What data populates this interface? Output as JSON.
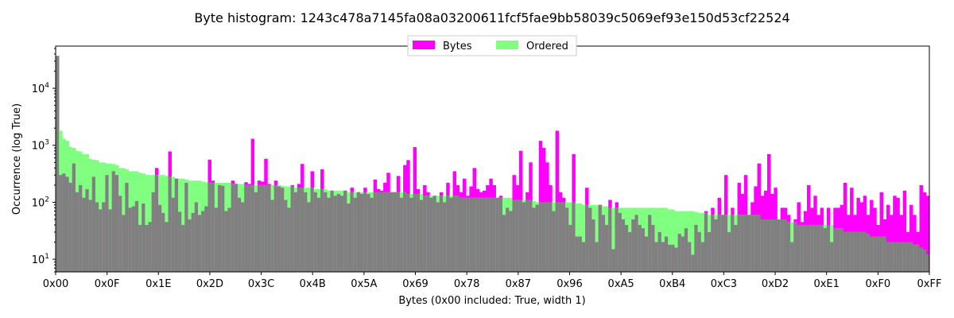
{
  "chart_data": {
    "type": "bar",
    "title": "Byte histogram: 1243c478a7145fa08a03200611fcf5fae9bb58039c5069ef93e150d53cf22524",
    "xlabel": "Bytes (0x00 included: True, width 1)",
    "ylabel": "Occurrence (log True)",
    "y_scale": "log",
    "ylim": [
      6,
      55000
    ],
    "xlim": [
      0,
      255
    ],
    "grid": false,
    "legend_position": "top-center",
    "x_tick_labels": [
      "0x00",
      "0x0F",
      "0x1E",
      "0x2D",
      "0x3C",
      "0x4B",
      "0x5A",
      "0x69",
      "0x78",
      "0x87",
      "0x96",
      "0xA5",
      "0xB4",
      "0xC3",
      "0xD2",
      "0xE1",
      "0xF0",
      "0xFF"
    ],
    "x_tick_values": [
      0,
      15,
      30,
      45,
      60,
      75,
      90,
      105,
      120,
      135,
      150,
      165,
      180,
      195,
      210,
      225,
      240,
      255
    ],
    "y_tick_labels": [
      "10^1",
      "10^2",
      "10^3",
      "10^4"
    ],
    "y_tick_values": [
      10,
      100,
      1000,
      10000
    ],
    "series": [
      {
        "name": "Bytes",
        "color": "#ff00ff",
        "values": [
          37000,
          300,
          320,
          280,
          220,
          480,
          150,
          200,
          120,
          170,
          110,
          280,
          100,
          75,
          100,
          300,
          75,
          350,
          300,
          130,
          60,
          220,
          80,
          85,
          105,
          40,
          95,
          40,
          45,
          150,
          400,
          90,
          65,
          45,
          780,
          120,
          260,
          68,
          40,
          220,
          50,
          65,
          100,
          60,
          70,
          85,
          560,
          240,
          80,
          200,
          195,
          70,
          80,
          240,
          210,
          120,
          100,
          225,
          210,
          1300,
          150,
          240,
          230,
          580,
          210,
          110,
          240,
          190,
          180,
          110,
          80,
          200,
          150,
          210,
          470,
          150,
          100,
          350,
          150,
          120,
          380,
          150,
          120,
          160,
          130,
          140,
          130,
          160,
          95,
          180,
          120,
          150,
          140,
          180,
          140,
          120,
          250,
          170,
          160,
          220,
          330,
          150,
          150,
          290,
          120,
          450,
          550,
          120,
          930,
          170,
          110,
          200,
          150,
          120,
          130,
          100,
          150,
          100,
          220,
          120,
          350,
          200,
          150,
          260,
          130,
          190,
          400,
          170,
          150,
          160,
          200,
          260,
          200,
          120,
          130,
          60,
          80,
          70,
          300,
          200,
          800,
          100,
          150,
          500,
          80,
          90,
          1200,
          900,
          500,
          200,
          70,
          1800,
          150,
          120,
          80,
          40,
          700,
          25,
          25,
          20,
          180,
          80,
          50,
          20,
          90,
          60,
          40,
          110,
          15,
          100,
          65,
          50,
          40,
          30,
          50,
          60,
          40,
          35,
          25,
          60,
          40,
          20,
          30,
          20,
          25,
          18,
          18,
          16,
          28,
          25,
          35,
          20,
          12,
          40,
          30,
          20,
          70,
          30,
          80,
          50,
          120,
          60,
          300,
          30,
          80,
          40,
          220,
          140,
          300,
          60,
          100,
          190,
          480,
          130,
          160,
          700,
          140,
          180,
          50,
          80,
          80,
          60,
          20,
          50,
          100,
          45,
          70,
          200,
          80,
          130,
          60,
          80,
          35,
          80,
          20,
          80,
          80,
          90,
          220,
          60,
          180,
          60,
          120,
          100,
          130,
          60,
          110,
          80,
          40,
          150,
          50,
          90,
          60,
          130,
          120,
          60,
          160,
          30,
          90,
          60,
          30,
          200,
          150,
          130
        ],
        "note_values_approximate": ""
      },
      {
        "name": "Ordered",
        "color": "#80ff80",
        "values": []
      }
    ]
  }
}
